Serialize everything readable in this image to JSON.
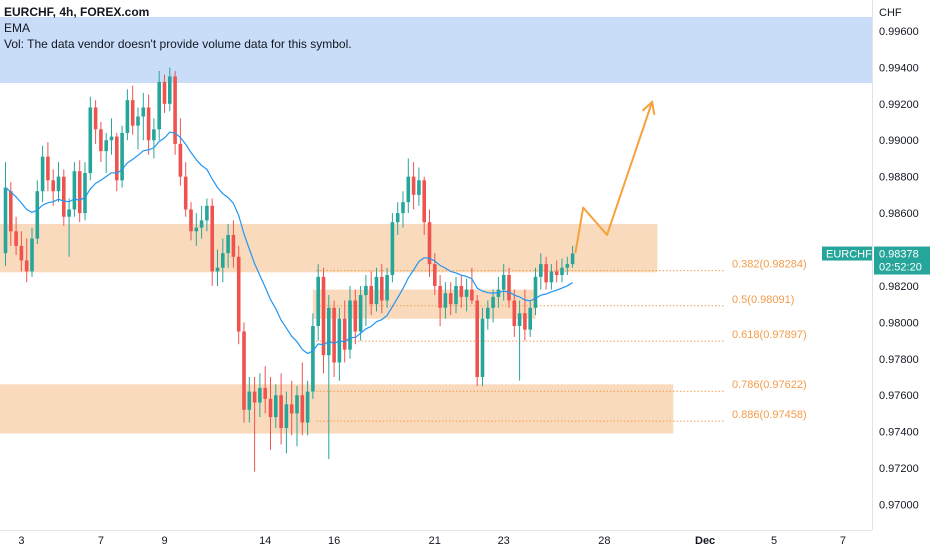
{
  "header": {
    "title": "EURCHF, 4h, FOREX.com",
    "indicator": "EMA",
    "volume_note": "Vol: The data vendor doesn't provide volume data for this symbol."
  },
  "price_axis": {
    "currency": "CHF",
    "labels": [
      "0.99600",
      "0.99400",
      "0.99200",
      "0.99000",
      "0.98800",
      "0.98600",
      "0.98200",
      "0.98000",
      "0.97800",
      "0.97600",
      "0.97400",
      "0.97200",
      "0.97000"
    ]
  },
  "time_axis": {
    "labels": [
      "3",
      "7",
      "9",
      "14",
      "16",
      "21",
      "23",
      "28",
      "Dec",
      "5",
      "7"
    ]
  },
  "last_price": {
    "symbol": "EURCHF",
    "price": "0.98378",
    "countdown": "02:52:20",
    "value": 0.98378
  },
  "colors": {
    "up": "#26a69a",
    "down": "#ef5350",
    "ema": "#2196f3",
    "zone": "#f9d3b0",
    "fib": "#f39c4a",
    "projection": "#f7a13a",
    "header_band": "#c9dcf8"
  },
  "fib_levels": [
    {
      "label": "0.382(0.98284)",
      "value": 0.98284
    },
    {
      "label": "0.5(0.98091)",
      "value": 0.98091
    },
    {
      "label": "0.618(0.97897)",
      "value": 0.97897
    },
    {
      "label": "0.786(0.97622)",
      "value": 0.97622
    },
    {
      "label": "0.886(0.97458)",
      "value": 0.97458
    }
  ],
  "chart_data": {
    "type": "candlestick",
    "symbol": "EURCHF",
    "interval": "4h",
    "ylim": [
      0.9686,
      0.9977
    ],
    "y_ticks": [
      0.996,
      0.994,
      0.992,
      0.99,
      0.988,
      0.986,
      0.982,
      0.98,
      0.978,
      0.976,
      0.974,
      0.972,
      0.97
    ],
    "x_ticks": [
      {
        "label": "3",
        "bar": 3
      },
      {
        "label": "7",
        "bar": 18
      },
      {
        "label": "9",
        "bar": 30
      },
      {
        "label": "14",
        "bar": 49
      },
      {
        "label": "16",
        "bar": 62
      },
      {
        "label": "21",
        "bar": 81
      },
      {
        "label": "23",
        "bar": 94
      },
      {
        "label": "28",
        "bar": 113
      },
      {
        "label": "Dec",
        "bar": 132
      },
      {
        "label": "5",
        "bar": 145
      },
      {
        "label": "7",
        "bar": 158
      }
    ],
    "zones": [
      {
        "top": 0.9854,
        "bottom": 0.98275,
        "bar_start": -2,
        "bar_end": 123
      },
      {
        "top": 0.9818,
        "bottom": 0.9802,
        "bar_start": 58,
        "bar_end": 100
      },
      {
        "top": 0.9766,
        "bottom": 0.9739,
        "bar_start": -2,
        "bar_end": 126
      }
    ],
    "projection": [
      {
        "bar": 107.5,
        "price": 0.9838
      },
      {
        "bar": 109,
        "price": 0.9863
      },
      {
        "bar": 113.5,
        "price": 0.9848
      },
      {
        "bar": 122,
        "price": 0.9921
      }
    ],
    "ohlc": [
      {
        "o": 0.9838,
        "h": 0.9888,
        "l": 0.9831,
        "c": 0.9874
      },
      {
        "o": 0.9872,
        "h": 0.9877,
        "l": 0.9842,
        "c": 0.985
      },
      {
        "o": 0.985,
        "h": 0.9858,
        "l": 0.9837,
        "c": 0.9842
      },
      {
        "o": 0.9842,
        "h": 0.985,
        "l": 0.9828,
        "c": 0.9834
      },
      {
        "o": 0.9834,
        "h": 0.9846,
        "l": 0.9822,
        "c": 0.9828
      },
      {
        "o": 0.9828,
        "h": 0.9852,
        "l": 0.9825,
        "c": 0.9846
      },
      {
        "o": 0.9846,
        "h": 0.9878,
        "l": 0.9843,
        "c": 0.9872
      },
      {
        "o": 0.9872,
        "h": 0.9897,
        "l": 0.9866,
        "c": 0.9891
      },
      {
        "o": 0.9891,
        "h": 0.9899,
        "l": 0.9872,
        "c": 0.9878
      },
      {
        "o": 0.9878,
        "h": 0.9884,
        "l": 0.9864,
        "c": 0.9872
      },
      {
        "o": 0.9872,
        "h": 0.9888,
        "l": 0.9866,
        "c": 0.988
      },
      {
        "o": 0.988,
        "h": 0.9884,
        "l": 0.9853,
        "c": 0.9858
      },
      {
        "o": 0.9858,
        "h": 0.9868,
        "l": 0.9836,
        "c": 0.9862
      },
      {
        "o": 0.9862,
        "h": 0.9888,
        "l": 0.9858,
        "c": 0.9883
      },
      {
        "o": 0.9883,
        "h": 0.9889,
        "l": 0.9855,
        "c": 0.986
      },
      {
        "o": 0.986,
        "h": 0.9888,
        "l": 0.9856,
        "c": 0.9882
      },
      {
        "o": 0.9882,
        "h": 0.9924,
        "l": 0.9878,
        "c": 0.9918
      },
      {
        "o": 0.9918,
        "h": 0.9922,
        "l": 0.9898,
        "c": 0.9906
      },
      {
        "o": 0.9906,
        "h": 0.991,
        "l": 0.9888,
        "c": 0.9894
      },
      {
        "o": 0.9894,
        "h": 0.9904,
        "l": 0.9882,
        "c": 0.99
      },
      {
        "o": 0.99,
        "h": 0.9912,
        "l": 0.9892,
        "c": 0.9902
      },
      {
        "o": 0.9902,
        "h": 0.9904,
        "l": 0.9872,
        "c": 0.9878
      },
      {
        "o": 0.9878,
        "h": 0.9908,
        "l": 0.9874,
        "c": 0.9904
      },
      {
        "o": 0.9904,
        "h": 0.9928,
        "l": 0.99,
        "c": 0.9922
      },
      {
        "o": 0.9922,
        "h": 0.993,
        "l": 0.9903,
        "c": 0.9908
      },
      {
        "o": 0.9908,
        "h": 0.9918,
        "l": 0.9895,
        "c": 0.9913
      },
      {
        "o": 0.9913,
        "h": 0.9926,
        "l": 0.99,
        "c": 0.9918
      },
      {
        "o": 0.9918,
        "h": 0.9925,
        "l": 0.9892,
        "c": 0.99
      },
      {
        "o": 0.99,
        "h": 0.9912,
        "l": 0.989,
        "c": 0.9906
      },
      {
        "o": 0.9906,
        "h": 0.9938,
        "l": 0.99,
        "c": 0.9932
      },
      {
        "o": 0.9932,
        "h": 0.9936,
        "l": 0.9915,
        "c": 0.992
      },
      {
        "o": 0.992,
        "h": 0.994,
        "l": 0.9916,
        "c": 0.9935
      },
      {
        "o": 0.9935,
        "h": 0.9938,
        "l": 0.9892,
        "c": 0.9898
      },
      {
        "o": 0.9898,
        "h": 0.9912,
        "l": 0.9875,
        "c": 0.988
      },
      {
        "o": 0.988,
        "h": 0.9888,
        "l": 0.9858,
        "c": 0.9862
      },
      {
        "o": 0.9862,
        "h": 0.9866,
        "l": 0.9845,
        "c": 0.985
      },
      {
        "o": 0.985,
        "h": 0.986,
        "l": 0.9842,
        "c": 0.9852
      },
      {
        "o": 0.9852,
        "h": 0.9864,
        "l": 0.9846,
        "c": 0.9856
      },
      {
        "o": 0.9856,
        "h": 0.9868,
        "l": 0.985,
        "c": 0.9864
      },
      {
        "o": 0.9864,
        "h": 0.9868,
        "l": 0.982,
        "c": 0.9828
      },
      {
        "o": 0.9828,
        "h": 0.984,
        "l": 0.982,
        "c": 0.983
      },
      {
        "o": 0.983,
        "h": 0.9846,
        "l": 0.9822,
        "c": 0.9838
      },
      {
        "o": 0.9838,
        "h": 0.9854,
        "l": 0.983,
        "c": 0.9848
      },
      {
        "o": 0.9848,
        "h": 0.9856,
        "l": 0.983,
        "c": 0.9836
      },
      {
        "o": 0.9836,
        "h": 0.9842,
        "l": 0.9788,
        "c": 0.9795
      },
      {
        "o": 0.9795,
        "h": 0.98,
        "l": 0.9745,
        "c": 0.9752
      },
      {
        "o": 0.9752,
        "h": 0.977,
        "l": 0.9745,
        "c": 0.9762
      },
      {
        "o": 0.9762,
        "h": 0.977,
        "l": 0.9718,
        "c": 0.9756
      },
      {
        "o": 0.9756,
        "h": 0.9772,
        "l": 0.9748,
        "c": 0.9764
      },
      {
        "o": 0.9764,
        "h": 0.9776,
        "l": 0.975,
        "c": 0.9758
      },
      {
        "o": 0.9758,
        "h": 0.977,
        "l": 0.973,
        "c": 0.9748
      },
      {
        "o": 0.9748,
        "h": 0.9766,
        "l": 0.9742,
        "c": 0.976
      },
      {
        "o": 0.976,
        "h": 0.9772,
        "l": 0.9733,
        "c": 0.9742
      },
      {
        "o": 0.9742,
        "h": 0.9762,
        "l": 0.9728,
        "c": 0.9755
      },
      {
        "o": 0.9755,
        "h": 0.9768,
        "l": 0.9738,
        "c": 0.975
      },
      {
        "o": 0.975,
        "h": 0.9765,
        "l": 0.9732,
        "c": 0.976
      },
      {
        "o": 0.976,
        "h": 0.9778,
        "l": 0.9738,
        "c": 0.9745
      },
      {
        "o": 0.9745,
        "h": 0.9768,
        "l": 0.9738,
        "c": 0.9762
      },
      {
        "o": 0.9762,
        "h": 0.9805,
        "l": 0.9758,
        "c": 0.9798
      },
      {
        "o": 0.9798,
        "h": 0.9832,
        "l": 0.979,
        "c": 0.9825
      },
      {
        "o": 0.9825,
        "h": 0.983,
        "l": 0.9772,
        "c": 0.9782
      },
      {
        "o": 0.9782,
        "h": 0.9815,
        "l": 0.9725,
        "c": 0.9808
      },
      {
        "o": 0.9808,
        "h": 0.9812,
        "l": 0.977,
        "c": 0.9778
      },
      {
        "o": 0.9778,
        "h": 0.9808,
        "l": 0.9768,
        "c": 0.9802
      },
      {
        "o": 0.9802,
        "h": 0.9812,
        "l": 0.9778,
        "c": 0.9785
      },
      {
        "o": 0.9785,
        "h": 0.982,
        "l": 0.978,
        "c": 0.9812
      },
      {
        "o": 0.9812,
        "h": 0.9818,
        "l": 0.9788,
        "c": 0.9795
      },
      {
        "o": 0.9795,
        "h": 0.982,
        "l": 0.979,
        "c": 0.9815
      },
      {
        "o": 0.9815,
        "h": 0.9826,
        "l": 0.9798,
        "c": 0.982
      },
      {
        "o": 0.982,
        "h": 0.9828,
        "l": 0.9804,
        "c": 0.981
      },
      {
        "o": 0.981,
        "h": 0.983,
        "l": 0.9806,
        "c": 0.9825
      },
      {
        "o": 0.9825,
        "h": 0.9832,
        "l": 0.9805,
        "c": 0.9812
      },
      {
        "o": 0.9812,
        "h": 0.983,
        "l": 0.9808,
        "c": 0.9826
      },
      {
        "o": 0.9826,
        "h": 0.986,
        "l": 0.9822,
        "c": 0.9855
      },
      {
        "o": 0.9855,
        "h": 0.9866,
        "l": 0.9848,
        "c": 0.986
      },
      {
        "o": 0.986,
        "h": 0.9872,
        "l": 0.9852,
        "c": 0.9866
      },
      {
        "o": 0.9866,
        "h": 0.989,
        "l": 0.986,
        "c": 0.988
      },
      {
        "o": 0.988,
        "h": 0.9888,
        "l": 0.9862,
        "c": 0.987
      },
      {
        "o": 0.987,
        "h": 0.9885,
        "l": 0.9864,
        "c": 0.9878
      },
      {
        "o": 0.9878,
        "h": 0.988,
        "l": 0.9848,
        "c": 0.9855
      },
      {
        "o": 0.9855,
        "h": 0.9862,
        "l": 0.9825,
        "c": 0.9832
      },
      {
        "o": 0.9832,
        "h": 0.9838,
        "l": 0.9815,
        "c": 0.982
      },
      {
        "o": 0.982,
        "h": 0.9826,
        "l": 0.9798,
        "c": 0.9808
      },
      {
        "o": 0.9808,
        "h": 0.9822,
        "l": 0.9802,
        "c": 0.9816
      },
      {
        "o": 0.9816,
        "h": 0.9822,
        "l": 0.9804,
        "c": 0.981
      },
      {
        "o": 0.981,
        "h": 0.9825,
        "l": 0.9805,
        "c": 0.982
      },
      {
        "o": 0.982,
        "h": 0.9826,
        "l": 0.9808,
        "c": 0.9814
      },
      {
        "o": 0.9814,
        "h": 0.9824,
        "l": 0.9806,
        "c": 0.9818
      },
      {
        "o": 0.9818,
        "h": 0.983,
        "l": 0.981,
        "c": 0.9812
      },
      {
        "o": 0.9812,
        "h": 0.9815,
        "l": 0.9765,
        "c": 0.977
      },
      {
        "o": 0.977,
        "h": 0.9808,
        "l": 0.9765,
        "c": 0.9802
      },
      {
        "o": 0.9802,
        "h": 0.9812,
        "l": 0.9796,
        "c": 0.9808
      },
      {
        "o": 0.9808,
        "h": 0.9818,
        "l": 0.98,
        "c": 0.9814
      },
      {
        "o": 0.9814,
        "h": 0.9825,
        "l": 0.9808,
        "c": 0.9818
      },
      {
        "o": 0.9818,
        "h": 0.9832,
        "l": 0.9812,
        "c": 0.9826
      },
      {
        "o": 0.9826,
        "h": 0.983,
        "l": 0.9808,
        "c": 0.9812
      },
      {
        "o": 0.9812,
        "h": 0.9818,
        "l": 0.9792,
        "c": 0.9798
      },
      {
        "o": 0.9798,
        "h": 0.9812,
        "l": 0.9768,
        "c": 0.9805
      },
      {
        "o": 0.9805,
        "h": 0.9818,
        "l": 0.979,
        "c": 0.9796
      },
      {
        "o": 0.9796,
        "h": 0.9812,
        "l": 0.9792,
        "c": 0.9808
      },
      {
        "o": 0.9808,
        "h": 0.983,
        "l": 0.9804,
        "c": 0.9825
      },
      {
        "o": 0.9825,
        "h": 0.9838,
        "l": 0.9818,
        "c": 0.9832
      },
      {
        "o": 0.9832,
        "h": 0.9836,
        "l": 0.9818,
        "c": 0.9822
      },
      {
        "o": 0.9822,
        "h": 0.9832,
        "l": 0.9818,
        "c": 0.9828
      },
      {
        "o": 0.9828,
        "h": 0.9834,
        "l": 0.9822,
        "c": 0.9826
      },
      {
        "o": 0.9826,
        "h": 0.9835,
        "l": 0.9822,
        "c": 0.983
      },
      {
        "o": 0.983,
        "h": 0.9836,
        "l": 0.9826,
        "c": 0.9832
      },
      {
        "o": 0.9832,
        "h": 0.9842,
        "l": 0.983,
        "c": 0.98378
      }
    ]
  }
}
